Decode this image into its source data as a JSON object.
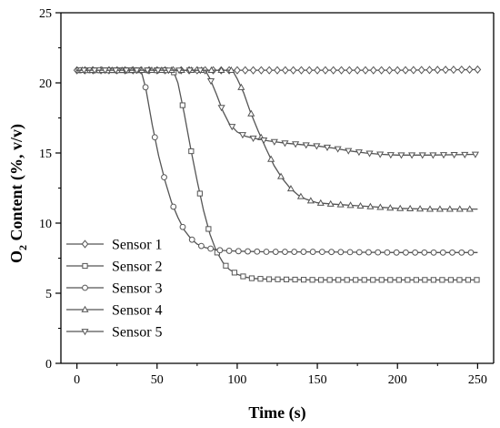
{
  "chart_data": {
    "type": "line",
    "xlabel": "Time (s)",
    "ylabel_main": "O",
    "ylabel_sub": "2",
    "ylabel_rest": " Content (%, v/v)",
    "xlim": [
      -10,
      260
    ],
    "ylim": [
      0,
      25
    ],
    "xticks": [
      0,
      50,
      100,
      150,
      200,
      250
    ],
    "yticks": [
      0,
      5,
      10,
      15,
      20,
      25
    ],
    "grid": false,
    "legend_position": "lower-left",
    "line_color": "#555555",
    "series": [
      {
        "name": "Sensor 1",
        "marker": "diamond",
        "points": [
          [
            0,
            20.9
          ],
          [
            50,
            20.9
          ],
          [
            100,
            20.9
          ],
          [
            150,
            20.9
          ],
          [
            200,
            20.9
          ],
          [
            250,
            20.95
          ]
        ]
      },
      {
        "name": "Sensor 2",
        "marker": "square",
        "points": [
          [
            0,
            20.9
          ],
          [
            60,
            20.9
          ],
          [
            63,
            20.0
          ],
          [
            67,
            17.8
          ],
          [
            71,
            15.3
          ],
          [
            75,
            13.0
          ],
          [
            79,
            10.9
          ],
          [
            83,
            9.2
          ],
          [
            87,
            8.0
          ],
          [
            91,
            7.2
          ],
          [
            95,
            6.7
          ],
          [
            100,
            6.35
          ],
          [
            105,
            6.15
          ],
          [
            110,
            6.05
          ],
          [
            120,
            6.0
          ],
          [
            150,
            5.95
          ],
          [
            200,
            5.95
          ],
          [
            250,
            5.95
          ]
        ]
      },
      {
        "name": "Sensor 3",
        "marker": "circle",
        "points": [
          [
            0,
            20.9
          ],
          [
            40,
            20.9
          ],
          [
            43,
            19.6
          ],
          [
            47,
            17.0
          ],
          [
            51,
            14.8
          ],
          [
            55,
            13.0
          ],
          [
            59,
            11.5
          ],
          [
            63,
            10.4
          ],
          [
            67,
            9.5
          ],
          [
            71,
            8.9
          ],
          [
            75,
            8.5
          ],
          [
            80,
            8.25
          ],
          [
            85,
            8.15
          ],
          [
            90,
            8.05
          ],
          [
            100,
            8.0
          ],
          [
            120,
            7.95
          ],
          [
            150,
            7.95
          ],
          [
            200,
            7.9
          ],
          [
            250,
            7.9
          ]
        ]
      },
      {
        "name": "Sensor 4",
        "marker": "triangle-up",
        "points": [
          [
            0,
            20.9
          ],
          [
            97,
            20.9
          ],
          [
            100,
            20.3
          ],
          [
            104,
            19.3
          ],
          [
            108,
            18.0
          ],
          [
            113,
            16.6
          ],
          [
            118,
            15.3
          ],
          [
            123,
            14.1
          ],
          [
            128,
            13.2
          ],
          [
            133,
            12.5
          ],
          [
            138,
            12.0
          ],
          [
            143,
            11.7
          ],
          [
            150,
            11.45
          ],
          [
            160,
            11.35
          ],
          [
            180,
            11.2
          ],
          [
            200,
            11.05
          ],
          [
            220,
            11.0
          ],
          [
            250,
            11.0
          ]
        ]
      },
      {
        "name": "Sensor 5",
        "marker": "triangle-down",
        "points": [
          [
            0,
            20.9
          ],
          [
            80,
            20.9
          ],
          [
            83,
            20.3
          ],
          [
            87,
            19.2
          ],
          [
            91,
            18.0
          ],
          [
            95,
            17.1
          ],
          [
            100,
            16.5
          ],
          [
            105,
            16.2
          ],
          [
            110,
            16.05
          ],
          [
            120,
            15.85
          ],
          [
            130,
            15.7
          ],
          [
            140,
            15.6
          ],
          [
            150,
            15.5
          ],
          [
            160,
            15.35
          ],
          [
            170,
            15.15
          ],
          [
            180,
            15.0
          ],
          [
            190,
            14.9
          ],
          [
            200,
            14.85
          ],
          [
            220,
            14.85
          ],
          [
            250,
            14.9
          ]
        ]
      }
    ]
  }
}
